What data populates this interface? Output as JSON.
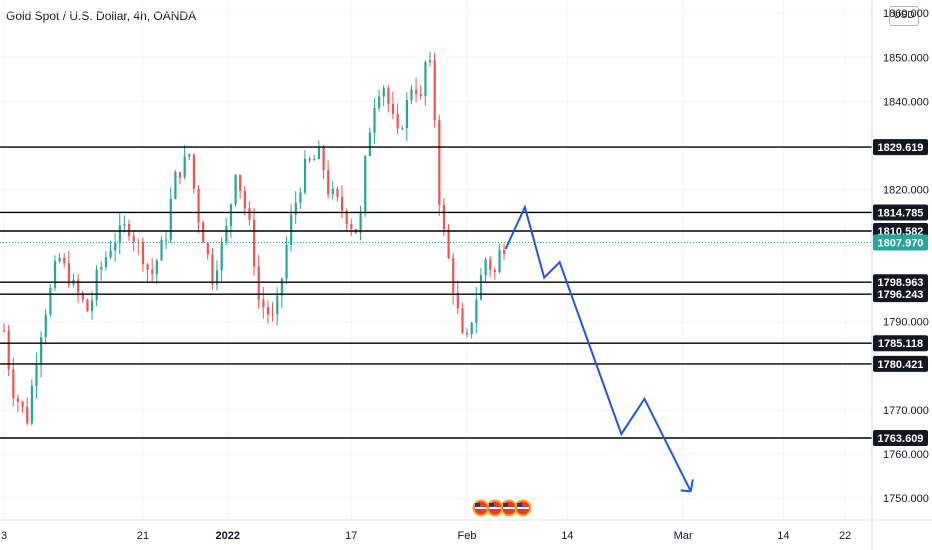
{
  "header": {
    "title": "Gold Spot / U.S. Dollar, 4h, OANDA",
    "currency": "USD"
  },
  "chart_data": {
    "type": "candlestick",
    "title": "Gold Spot / U.S. Dollar, 4h, OANDA",
    "ylim": [
      1745,
      1863
    ],
    "y_ticks": [
      {
        "value": 1860,
        "label": "1860.000"
      },
      {
        "value": 1850,
        "label": "1850.000"
      },
      {
        "value": 1840,
        "label": "1840.000"
      },
      {
        "value": 1820,
        "label": "1820.000"
      },
      {
        "value": 1790,
        "label": "1790.000"
      },
      {
        "value": 1770,
        "label": "1770.000"
      },
      {
        "value": 1760,
        "label": "1760.000"
      },
      {
        "value": 1750,
        "label": "1750.000"
      }
    ],
    "x_ticks": [
      {
        "day": 3,
        "label": "3",
        "bold": false
      },
      {
        "day": 21,
        "label": "21",
        "bold": false
      },
      {
        "day": 32,
        "label": "2022",
        "bold": true
      },
      {
        "day": 48,
        "label": "17",
        "bold": false
      },
      {
        "day": 63,
        "label": "Feb",
        "bold": false
      },
      {
        "day": 76,
        "label": "14",
        "bold": false
      },
      {
        "day": 91,
        "label": "Mar",
        "bold": false
      },
      {
        "day": 104,
        "label": "14",
        "bold": false
      },
      {
        "day": 112,
        "label": "22",
        "bold": false
      }
    ],
    "x_domain": [
      3,
      116
    ],
    "levels": [
      {
        "value": 1829.619,
        "label": "1829.619"
      },
      {
        "value": 1814.785,
        "label": "1814.785"
      },
      {
        "value": 1810.582,
        "label": "1810.582"
      },
      {
        "value": 1798.963,
        "label": "1798.963"
      },
      {
        "value": 1796.243,
        "label": "1796.243"
      },
      {
        "value": 1785.118,
        "label": "1785.118"
      },
      {
        "value": 1780.421,
        "label": "1780.421"
      },
      {
        "value": 1763.609,
        "label": "1763.609"
      }
    ],
    "current_price": {
      "value": 1807.97,
      "label": "1807.970"
    },
    "price_path": [
      [
        3,
        1788
      ],
      [
        4,
        1775
      ],
      [
        6,
        1768
      ],
      [
        7,
        1780
      ],
      [
        8,
        1790
      ],
      [
        9,
        1797
      ],
      [
        10,
        1805
      ],
      [
        12,
        1798
      ],
      [
        14,
        1792
      ],
      [
        15,
        1800
      ],
      [
        17,
        1808
      ],
      [
        19,
        1812
      ],
      [
        21,
        1805
      ],
      [
        22,
        1800
      ],
      [
        24,
        1810
      ],
      [
        25,
        1822
      ],
      [
        27,
        1828
      ],
      [
        28,
        1815
      ],
      [
        29,
        1808
      ],
      [
        30,
        1800
      ],
      [
        32,
        1812
      ],
      [
        33,
        1825
      ],
      [
        35,
        1810
      ],
      [
        36,
        1795
      ],
      [
        38,
        1790
      ],
      [
        39,
        1800
      ],
      [
        40,
        1812
      ],
      [
        42,
        1825
      ],
      [
        44,
        1828
      ],
      [
        45,
        1820
      ],
      [
        47,
        1815
      ],
      [
        48,
        1812
      ],
      [
        49,
        1810
      ],
      [
        50,
        1830
      ],
      [
        51,
        1840
      ],
      [
        52,
        1845
      ],
      [
        53,
        1838
      ],
      [
        54,
        1832
      ],
      [
        55,
        1838
      ],
      [
        56,
        1845
      ],
      [
        57,
        1840
      ],
      [
        57.7,
        1850
      ],
      [
        58.5,
        1846
      ],
      [
        59,
        1830
      ],
      [
        59.5,
        1815
      ],
      [
        60,
        1810
      ],
      [
        61,
        1800
      ],
      [
        62,
        1790
      ],
      [
        62.7,
        1783
      ],
      [
        63.5,
        1790
      ],
      [
        64.5,
        1798
      ],
      [
        65.5,
        1805
      ],
      [
        66.5,
        1800
      ],
      [
        67,
        1805
      ],
      [
        68,
        1808
      ]
    ],
    "forecast": [
      [
        68,
        1806.5
      ],
      [
        70.5,
        1816
      ],
      [
        73,
        1800
      ],
      [
        75,
        1803.5
      ],
      [
        83,
        1764.5
      ],
      [
        86,
        1772.5
      ],
      [
        92,
        1751.5
      ]
    ],
    "currency_flags": 4
  }
}
